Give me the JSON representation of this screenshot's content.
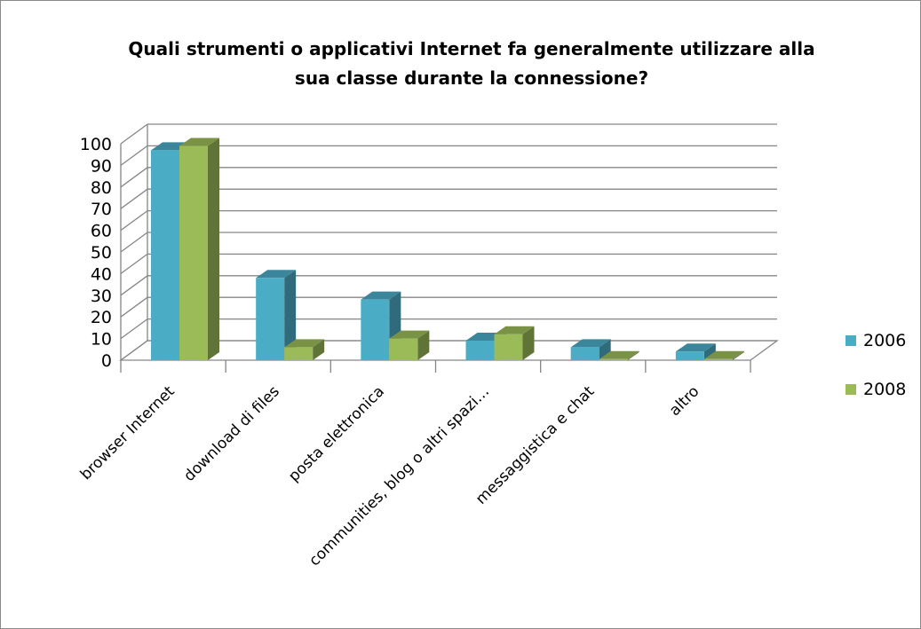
{
  "chart_data": {
    "type": "bar",
    "title": "Quali strumenti o applicativi Internet fa generalmente utilizzare alla\nsua classe durante la connessione?",
    "categories": [
      "browser Internet",
      "download di files",
      "posta elettronica",
      "communities, blog o altri spazi…",
      "messaggistica e chat",
      "altro"
    ],
    "series": [
      {
        "name": "2006",
        "values": [
          97,
          38,
          28,
          9,
          6,
          4
        ],
        "color": "#4bacc6"
      },
      {
        "name": "2008",
        "values": [
          99,
          6,
          10,
          12,
          0.5,
          0.5
        ],
        "color": "#9bbb59"
      }
    ],
    "yticks": [
      0,
      10,
      20,
      30,
      40,
      50,
      60,
      70,
      80,
      90,
      100
    ],
    "ylim": [
      0,
      100
    ],
    "grid": true,
    "legend": "right",
    "style": "3d-clustered-column"
  }
}
